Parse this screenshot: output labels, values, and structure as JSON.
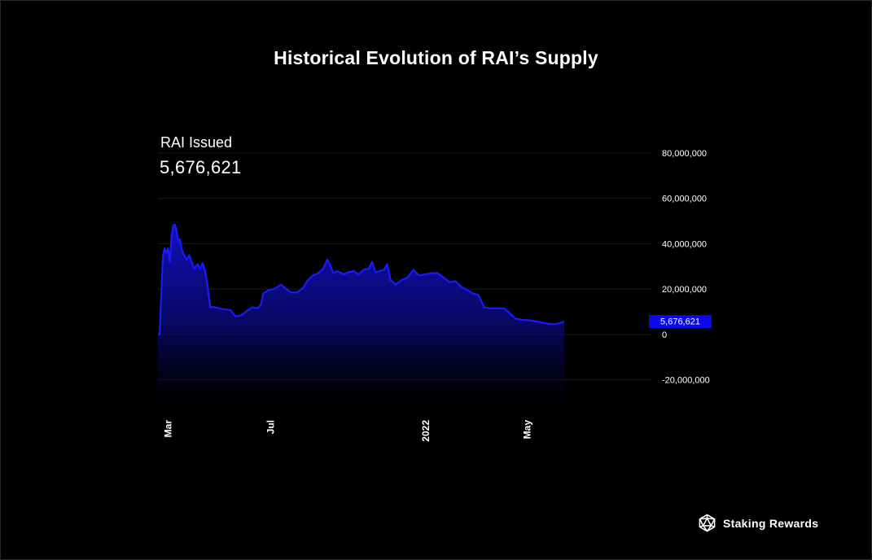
{
  "title": "Historical Evolution of RAI’s Supply",
  "metric": {
    "label": "RAI Issued",
    "value": "5,676,621"
  },
  "brand": {
    "name": "Staking Rewards",
    "icon": "staking-rewards-logo-icon"
  },
  "colors": {
    "background": "#000000",
    "line": "#1a1aff",
    "area_top": "#1010c8",
    "badge": "#0a0ae6"
  },
  "chart_data": {
    "type": "area",
    "title": "Historical Evolution of RAI’s Supply",
    "series": [
      {
        "name": "RAI Issued",
        "points": [
          [
            "2021-02-17",
            0
          ],
          [
            "2021-02-19",
            100000
          ],
          [
            "2021-02-21",
            18000000
          ],
          [
            "2021-02-23",
            35000000
          ],
          [
            "2021-02-25",
            38000000
          ],
          [
            "2021-02-27",
            36000000
          ],
          [
            "2021-03-01",
            38000000
          ],
          [
            "2021-03-03",
            32000000
          ],
          [
            "2021-03-05",
            43000000
          ],
          [
            "2021-03-07",
            48000000
          ],
          [
            "2021-03-09",
            48500000
          ],
          [
            "2021-03-11",
            46000000
          ],
          [
            "2021-03-13",
            41000000
          ],
          [
            "2021-03-15",
            42000000
          ],
          [
            "2021-03-17",
            38000000
          ],
          [
            "2021-03-20",
            35000000
          ],
          [
            "2021-03-23",
            33000000
          ],
          [
            "2021-03-26",
            35000000
          ],
          [
            "2021-03-29",
            32000000
          ],
          [
            "2021-04-01",
            29000000
          ],
          [
            "2021-04-05",
            31000000
          ],
          [
            "2021-04-08",
            29000000
          ],
          [
            "2021-04-11",
            31500000
          ],
          [
            "2021-04-14",
            28000000
          ],
          [
            "2021-04-17",
            21000000
          ],
          [
            "2021-04-20",
            12000000
          ],
          [
            "2021-04-25",
            12000000
          ],
          [
            "2021-05-01",
            11500000
          ],
          [
            "2021-05-08",
            11000000
          ],
          [
            "2021-05-14",
            10800000
          ],
          [
            "2021-05-20",
            8000000
          ],
          [
            "2021-05-27",
            8500000
          ],
          [
            "2021-06-03",
            10500000
          ],
          [
            "2021-06-09",
            12000000
          ],
          [
            "2021-06-15",
            11500000
          ],
          [
            "2021-06-19",
            13000000
          ],
          [
            "2021-06-22",
            18000000
          ],
          [
            "2021-06-28",
            19500000
          ],
          [
            "2021-07-05",
            20000000
          ],
          [
            "2021-07-09",
            21000000
          ],
          [
            "2021-07-13",
            22000000
          ],
          [
            "2021-07-19",
            20000000
          ],
          [
            "2021-07-25",
            18500000
          ],
          [
            "2021-08-01",
            18500000
          ],
          [
            "2021-08-08",
            20500000
          ],
          [
            "2021-08-14",
            24000000
          ],
          [
            "2021-08-20",
            26000000
          ],
          [
            "2021-08-26",
            27000000
          ],
          [
            "2021-09-01",
            29000000
          ],
          [
            "2021-09-06",
            33000000
          ],
          [
            "2021-09-09",
            31000000
          ],
          [
            "2021-09-13",
            27000000
          ],
          [
            "2021-09-18",
            28000000
          ],
          [
            "2021-09-25",
            26500000
          ],
          [
            "2021-10-01",
            27500000
          ],
          [
            "2021-10-07",
            28000000
          ],
          [
            "2021-10-13",
            26500000
          ],
          [
            "2021-10-19",
            28500000
          ],
          [
            "2021-10-25",
            29000000
          ],
          [
            "2021-10-29",
            32000000
          ],
          [
            "2021-11-02",
            27500000
          ],
          [
            "2021-11-07",
            28000000
          ],
          [
            "2021-11-12",
            28500000
          ],
          [
            "2021-11-16",
            31000000
          ],
          [
            "2021-11-20",
            24000000
          ],
          [
            "2021-11-26",
            22000000
          ],
          [
            "2021-12-03",
            24000000
          ],
          [
            "2021-12-10",
            25000000
          ],
          [
            "2021-12-17",
            28500000
          ],
          [
            "2021-12-24",
            26000000
          ],
          [
            "2021-12-31",
            26500000
          ],
          [
            "2022-01-08",
            27000000
          ],
          [
            "2022-01-15",
            27000000
          ],
          [
            "2022-01-22",
            25000000
          ],
          [
            "2022-01-29",
            23000000
          ],
          [
            "2022-02-05",
            23500000
          ],
          [
            "2022-02-12",
            21000000
          ],
          [
            "2022-02-19",
            19500000
          ],
          [
            "2022-02-26",
            18000000
          ],
          [
            "2022-03-04",
            17500000
          ],
          [
            "2022-03-11",
            12000000
          ],
          [
            "2022-03-18",
            11500000
          ],
          [
            "2022-03-27",
            11500000
          ],
          [
            "2022-04-04",
            11500000
          ],
          [
            "2022-04-10",
            9500000
          ],
          [
            "2022-04-17",
            7000000
          ],
          [
            "2022-04-24",
            6500000
          ],
          [
            "2022-05-05",
            6200000
          ],
          [
            "2022-05-15",
            5500000
          ],
          [
            "2022-05-25",
            4800000
          ],
          [
            "2022-06-02",
            4500000
          ],
          [
            "2022-06-09",
            5000000
          ],
          [
            "2022-06-14",
            5676621
          ]
        ]
      }
    ],
    "x_ticks": [
      {
        "date": "2021-03-01",
        "label": "Mar"
      },
      {
        "date": "2021-07-01",
        "label": "Jul"
      },
      {
        "date": "2022-01-01",
        "label": "2022"
      },
      {
        "date": "2022-05-01",
        "label": "May"
      }
    ],
    "y_ticks": [
      {
        "value": 80000000,
        "label": "80,000,000"
      },
      {
        "value": 60000000,
        "label": "60,000,000"
      },
      {
        "value": 40000000,
        "label": "40,000,000"
      },
      {
        "value": 20000000,
        "label": "20,000,000"
      },
      {
        "value": 0,
        "label": "0"
      },
      {
        "value": -20000000,
        "label": "-20,000,000"
      }
    ],
    "ylim": [
      -32000000,
      80000000
    ],
    "xlim": [
      "2021-02-17",
      "2022-06-14"
    ],
    "grid": true,
    "y_axis_side": "right",
    "current_value_label": "5,676,621"
  }
}
